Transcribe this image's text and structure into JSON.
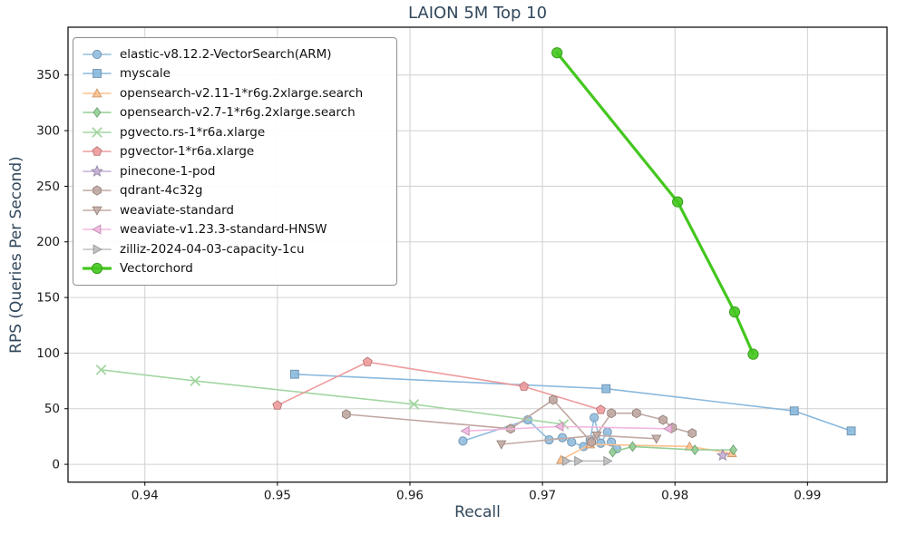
{
  "chart_data": {
    "type": "line",
    "title": "LAION 5M Top 10",
    "xlabel": "Recall",
    "ylabel": "RPS (Queries Per Second)",
    "xlim": [
      0.9342,
      0.996
    ],
    "ylim": [
      -16,
      393
    ],
    "xticks": [
      0.94,
      0.95,
      0.96,
      0.97,
      0.98,
      0.99
    ],
    "yticks": [
      0,
      50,
      100,
      150,
      200,
      250,
      300,
      350
    ],
    "grid": true,
    "grid_color": "#d0d0d0",
    "spine_color": "#000000",
    "tick_label_color": "#1a1a1a",
    "axis_text_color": "#31475c",
    "legend_position": "upper-left",
    "series": [
      {
        "name": "elastic-v8.12.2-VectorSearch(ARM)",
        "marker": "circle",
        "color": "#92BEDF",
        "line_width": 1.6,
        "marker_size": 4.6,
        "points": [
          [
            0.964,
            21
          ],
          [
            0.9689,
            40
          ],
          [
            0.9705,
            22
          ],
          [
            0.9715,
            24
          ],
          [
            0.9722,
            20
          ],
          [
            0.9731,
            16
          ],
          [
            0.9736,
            22
          ],
          [
            0.9739,
            42
          ],
          [
            0.9744,
            19
          ],
          [
            0.9749,
            29
          ],
          [
            0.9752,
            20
          ],
          [
            0.9756,
            14
          ]
        ]
      },
      {
        "name": "myscale",
        "marker": "square",
        "color": "#8AB9DD",
        "line_width": 1.6,
        "marker_size": 4.4,
        "points": [
          [
            0.9513,
            81
          ],
          [
            0.9748,
            68
          ],
          [
            0.989,
            48
          ],
          [
            0.9933,
            30
          ]
        ]
      },
      {
        "name": "opensearch-v2.11-1*r6g.2xlarge.search",
        "marker": "triangle-up",
        "color": "#FFC08C",
        "line_width": 1.6,
        "marker_size": 4.8,
        "points": [
          [
            0.9714,
            4
          ],
          [
            0.9736,
            18
          ],
          [
            0.9811,
            16
          ],
          [
            0.9843,
            10
          ]
        ]
      },
      {
        "name": "opensearch-v2.7-1*r6g.2xlarge.search",
        "marker": "diamond",
        "color": "#93CE96",
        "line_width": 1.6,
        "marker_size": 5.2,
        "points": [
          [
            0.9753,
            11
          ],
          [
            0.9768,
            16
          ],
          [
            0.9815,
            13
          ],
          [
            0.9844,
            13
          ]
        ]
      },
      {
        "name": "pgvecto.rs-1*r6a.xlarge",
        "marker": "x",
        "color": "#A3D6A3",
        "line_width": 1.6,
        "marker_size": 5.2,
        "points": [
          [
            0.9367,
            85
          ],
          [
            0.9438,
            75
          ],
          [
            0.9603,
            54
          ],
          [
            0.9716,
            36
          ]
        ]
      },
      {
        "name": "pgvector-1*r6a.xlarge",
        "marker": "pentagon",
        "color": "#EE9B9C",
        "line_width": 1.6,
        "marker_size": 5.2,
        "points": [
          [
            0.95,
            53
          ],
          [
            0.9568,
            92
          ],
          [
            0.9686,
            70
          ],
          [
            0.9744,
            49
          ]
        ]
      },
      {
        "name": "pinecone-1-pod",
        "marker": "star",
        "color": "#C3AED5",
        "line_width": 1.6,
        "marker_size": 6,
        "points": [
          [
            0.9836,
            8
          ]
        ]
      },
      {
        "name": "qdrant-4c32g",
        "marker": "hexagon",
        "color": "#C0A7A1",
        "line_width": 1.6,
        "marker_size": 5,
        "points": [
          [
            0.9552,
            45
          ],
          [
            0.9676,
            32
          ],
          [
            0.9708,
            58
          ],
          [
            0.9737,
            20
          ],
          [
            0.9752,
            46
          ],
          [
            0.9771,
            46
          ],
          [
            0.9791,
            40
          ],
          [
            0.9798,
            33
          ],
          [
            0.9813,
            28
          ]
        ]
      },
      {
        "name": "weaviate-standard",
        "marker": "triangle-down",
        "color": "#C3ABA4",
        "line_width": 1.6,
        "marker_size": 4.8,
        "points": [
          [
            0.9669,
            18
          ],
          [
            0.9741,
            26
          ],
          [
            0.9786,
            23
          ]
        ]
      },
      {
        "name": "weaviate-v1.23.3-standard-HNSW",
        "marker": "triangle-left",
        "color": "#F2B7E0",
        "line_width": 1.6,
        "marker_size": 4.8,
        "points": [
          [
            0.9642,
            30
          ],
          [
            0.9713,
            34
          ],
          [
            0.9795,
            32
          ]
        ]
      },
      {
        "name": "zilliz-2024-04-03-capacity-1cu",
        "marker": "triangle-right",
        "color": "#BFBFBF",
        "line_width": 1.6,
        "marker_size": 4.8,
        "points": [
          [
            0.9718,
            3
          ],
          [
            0.9727,
            3
          ],
          [
            0.9749,
            3
          ]
        ]
      },
      {
        "name": "Vectorchord",
        "marker": "circle",
        "color": "#44C71F",
        "line_width": 3.2,
        "marker_size": 5.6,
        "points": [
          [
            0.9711,
            370
          ],
          [
            0.9802,
            236
          ],
          [
            0.9845,
            137
          ],
          [
            0.9859,
            99
          ]
        ]
      }
    ]
  }
}
